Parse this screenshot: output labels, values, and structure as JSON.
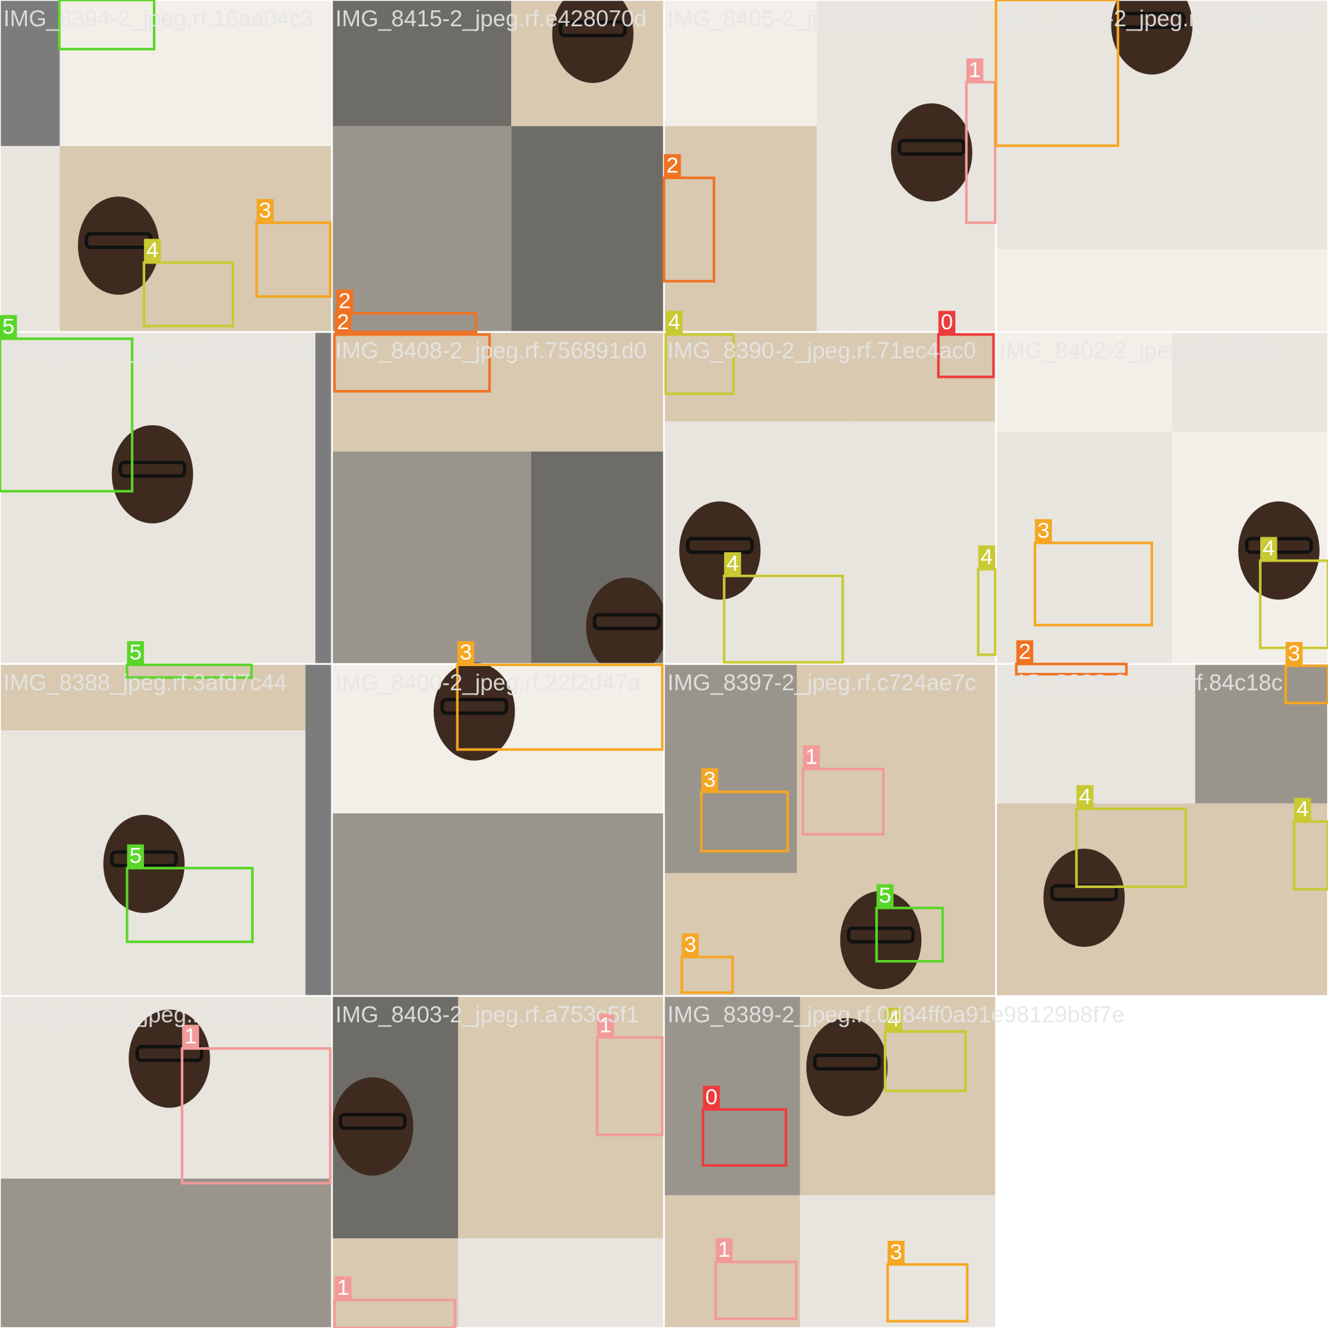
{
  "tiles": [
    {
      "filename": "IMG_8394-2_jpeg.rf.16aa04c3",
      "boxes": [
        "5",
        "4",
        "3"
      ]
    },
    {
      "filename": "IMG_8415-2_jpeg.rf.e428070d",
      "boxes": []
    },
    {
      "filename": "IMG_8405-2_jpeg.rf.907696a4",
      "boxes": [
        "1",
        "2"
      ]
    },
    {
      "filename": "IMG_8402-2_jpeg.rf.93a6c2ae",
      "boxes": [
        "3"
      ]
    },
    {
      "filename": "IMG_8395-2_jpeg.rf.3064b8d0",
      "boxes": [
        "5"
      ]
    },
    {
      "filename": "IMG_8408-2_jpeg.rf.756891d0",
      "boxes": [
        "2",
        "2"
      ]
    },
    {
      "filename": "IMG_8390-2_jpeg.rf.71ec4ac0",
      "boxes": [
        "4",
        "0",
        "4",
        "4"
      ]
    },
    {
      "filename": "IMG_8402-2_jpeg.rf.7c90bc",
      "boxes": [
        "3",
        "4",
        "2",
        "3"
      ]
    },
    {
      "filename": "IMG_8388_jpeg.rf.3afd7c44",
      "boxes": [
        "5",
        "5"
      ]
    },
    {
      "filename": "IMG_8400-2_jpeg.rf.22f2d47a",
      "boxes": [
        "3"
      ]
    },
    {
      "filename": "IMG_8397-2_jpeg.rf.c724ae7c",
      "boxes": [
        "3",
        "1",
        "5",
        "3"
      ]
    },
    {
      "filename": "IMG_8393-2_jpeg.rf.84c18c",
      "boxes": [
        "4",
        "4"
      ]
    },
    {
      "filename": "IMG_8414-2_jpeg.rf.59338e7c",
      "boxes": [
        "1"
      ]
    },
    {
      "filename": "IMG_8403-2_jpeg.rf.a753c5f1",
      "boxes": [
        "1",
        "1"
      ]
    },
    {
      "filename": "IMG_8389-2_jpeg.rf.0d84ff0a91e98129b8f7e",
      "boxes": [
        "4",
        "0",
        "1",
        "3"
      ]
    }
  ]
}
